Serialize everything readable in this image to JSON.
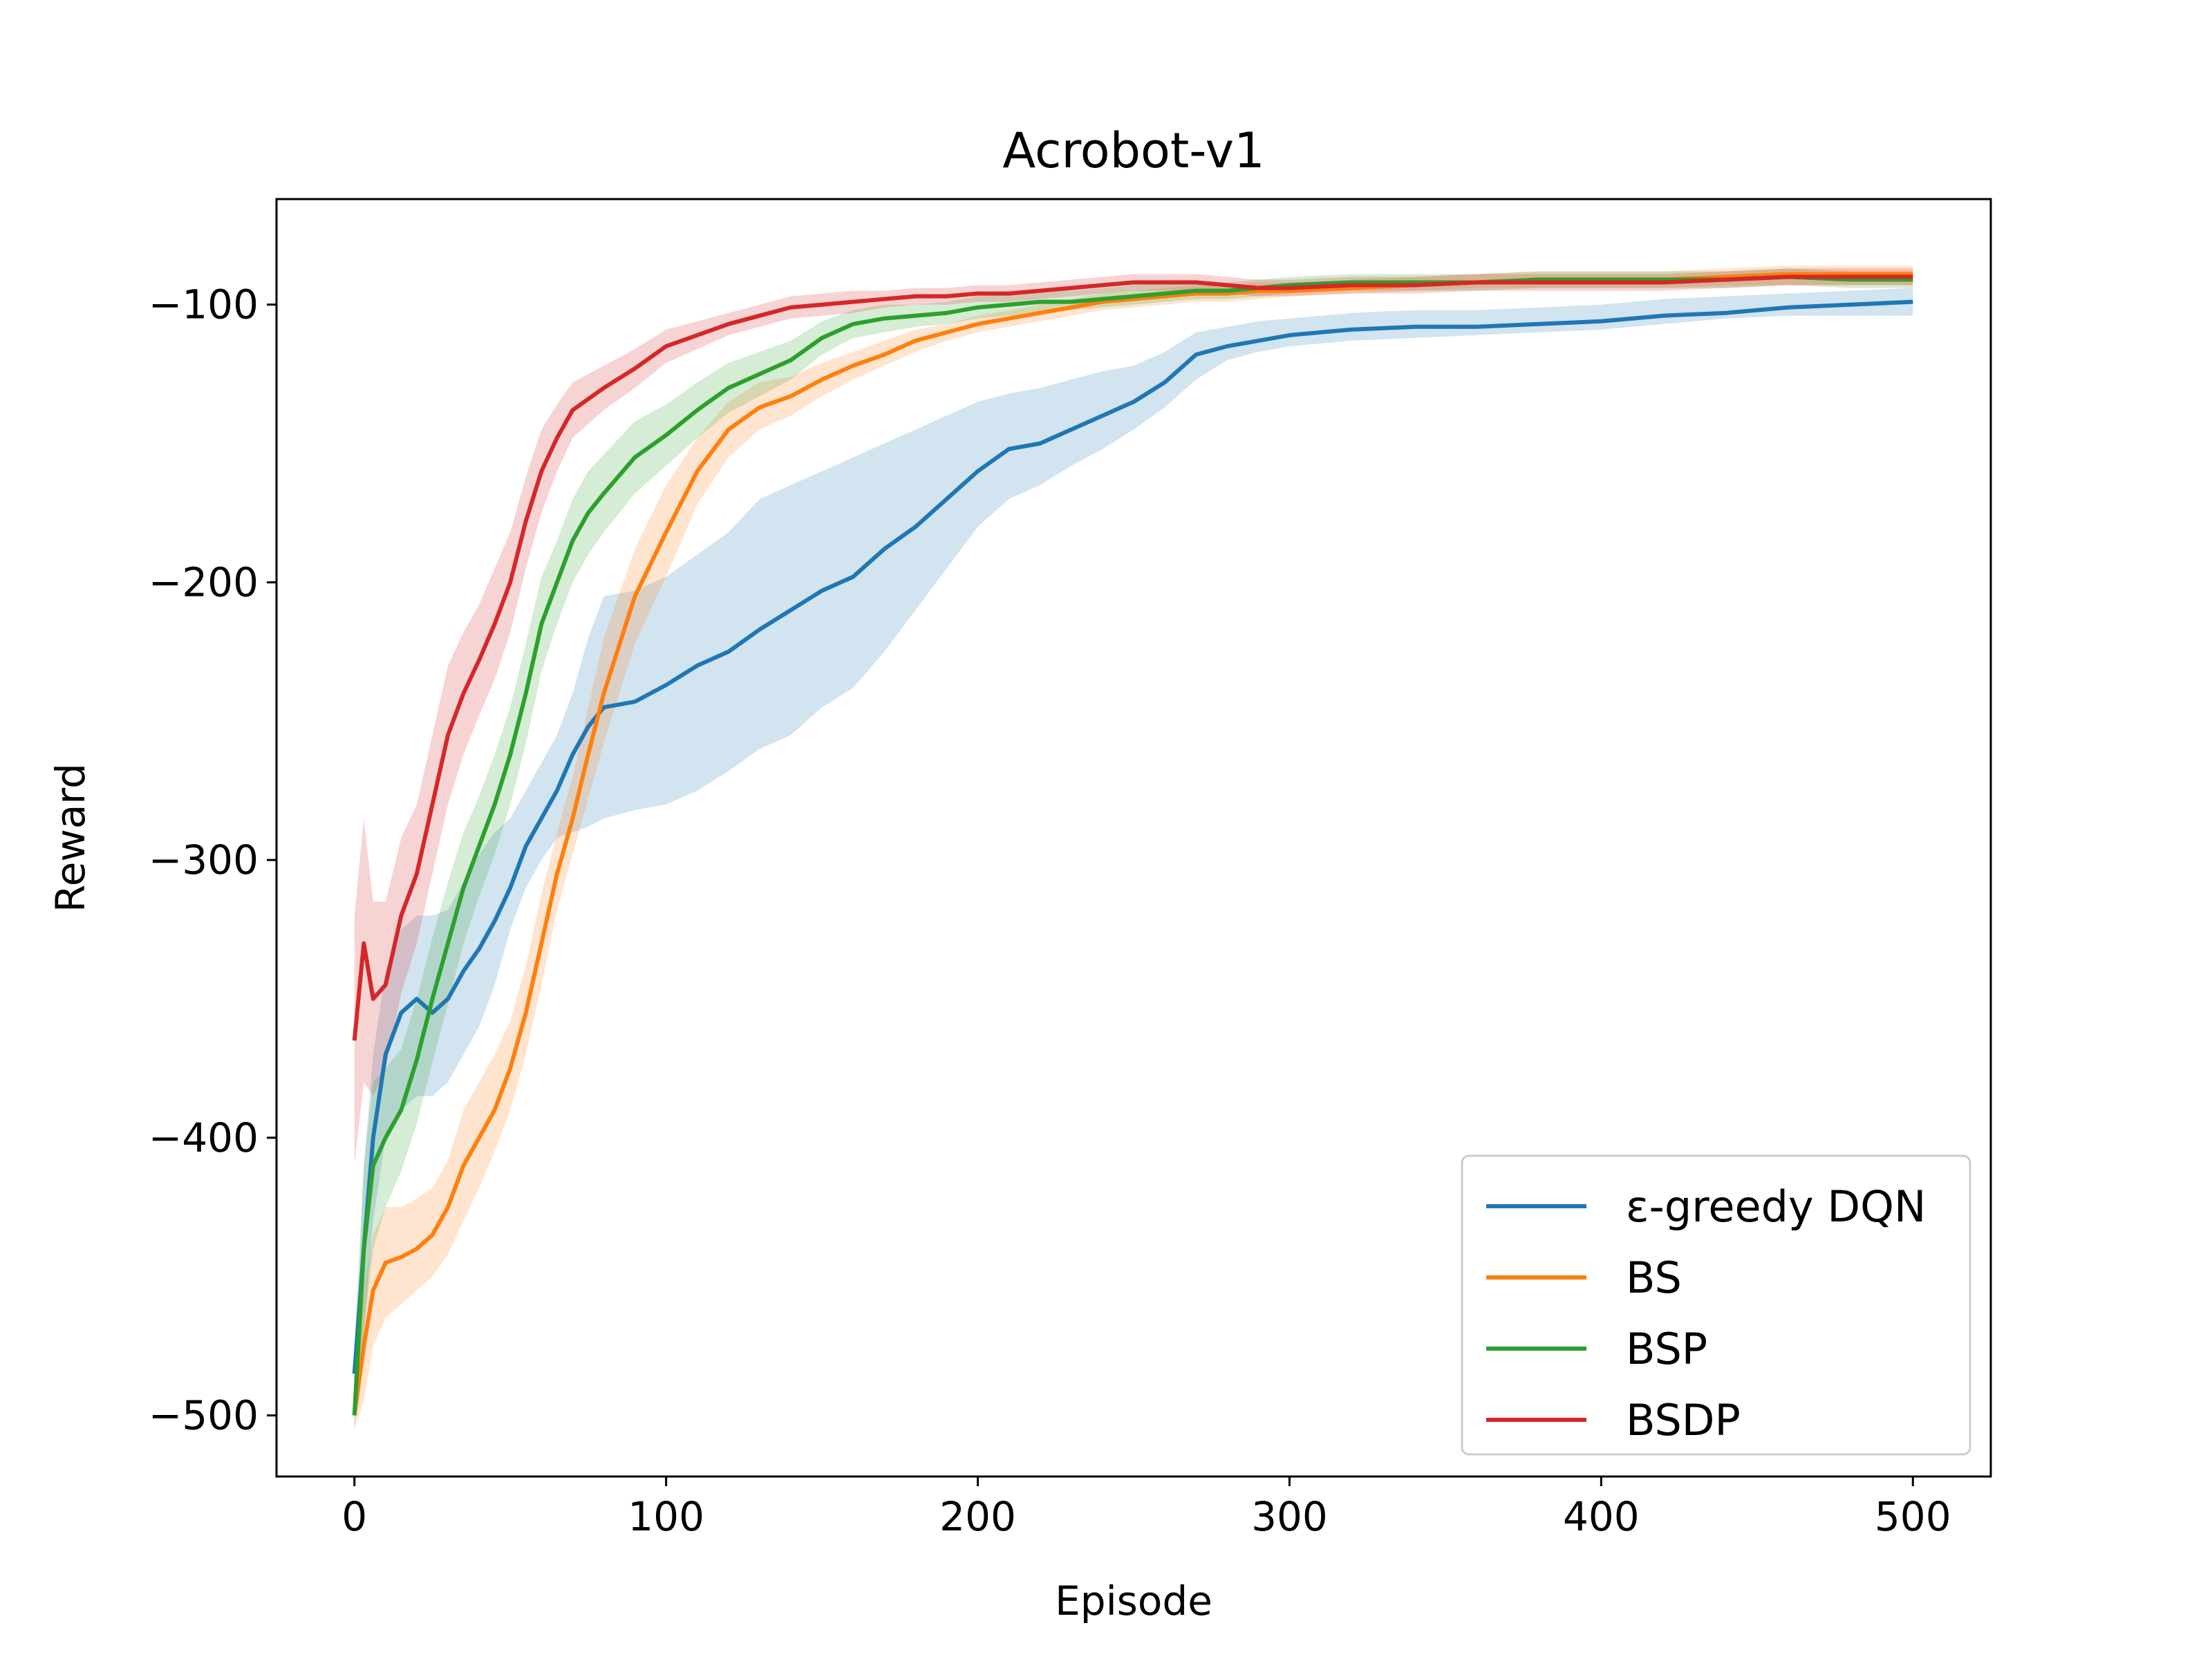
{
  "chart_data": {
    "type": "line",
    "title": "Acrobot-v1",
    "xlabel": "Episode",
    "ylabel": "Reward",
    "xlim": [
      -25,
      525
    ],
    "ylim": [
      -522,
      -62
    ],
    "xticks": [
      0,
      100,
      200,
      300,
      400,
      500
    ],
    "yticks": [
      -500,
      -400,
      -300,
      -200,
      -100
    ],
    "xtick_labels": [
      "0",
      "100",
      "200",
      "300",
      "400",
      "500"
    ],
    "ytick_labels": [
      "−500",
      "−400",
      "−300",
      "−200",
      "−100"
    ],
    "grid": false,
    "legend_position": "lower-right",
    "series": [
      {
        "name": "ε-greedy DQN",
        "color": "#1f77b4",
        "x": [
          0,
          3,
          6,
          10,
          15,
          20,
          25,
          30,
          35,
          40,
          45,
          50,
          55,
          60,
          65,
          70,
          75,
          80,
          90,
          100,
          110,
          120,
          130,
          140,
          150,
          160,
          170,
          180,
          190,
          200,
          210,
          220,
          230,
          240,
          250,
          260,
          270,
          280,
          290,
          300,
          310,
          320,
          340,
          360,
          380,
          400,
          420,
          440,
          460,
          480,
          500
        ],
        "y": [
          -485,
          -440,
          -400,
          -370,
          -355,
          -350,
          -355,
          -350,
          -340,
          -332,
          -322,
          -310,
          -295,
          -285,
          -275,
          -262,
          -252,
          -245,
          -243,
          -237,
          -230,
          -225,
          -217,
          -210,
          -203,
          -198,
          -188,
          -180,
          -170,
          -160,
          -152,
          -150,
          -145,
          -140,
          -135,
          -128,
          -118,
          -115,
          -113,
          -111,
          -110,
          -109,
          -108,
          -108,
          -107,
          -106,
          -104,
          -103,
          -101,
          -100,
          -99
        ],
        "lower": [
          -495,
          -470,
          -430,
          -400,
          -390,
          -385,
          -385,
          -380,
          -370,
          -360,
          -345,
          -325,
          -310,
          -300,
          -292,
          -290,
          -288,
          -285,
          -282,
          -280,
          -275,
          -268,
          -260,
          -255,
          -245,
          -238,
          -225,
          -210,
          -195,
          -180,
          -170,
          -165,
          -158,
          -152,
          -145,
          -137,
          -127,
          -120,
          -117,
          -115,
          -114,
          -113,
          -112,
          -111,
          -110,
          -109,
          -107,
          -105,
          -104,
          -104,
          -104
        ],
        "upper": [
          -475,
          -410,
          -370,
          -340,
          -325,
          -320,
          -320,
          -318,
          -308,
          -298,
          -290,
          -285,
          -275,
          -265,
          -255,
          -240,
          -220,
          -205,
          -203,
          -198,
          -190,
          -182,
          -170,
          -165,
          -160,
          -155,
          -150,
          -145,
          -140,
          -135,
          -132,
          -130,
          -127,
          -124,
          -122,
          -117,
          -110,
          -108,
          -106,
          -105,
          -104,
          -103,
          -102,
          -102,
          -101,
          -100,
          -98,
          -97,
          -96,
          -95,
          -94
        ]
      },
      {
        "name": "BS",
        "color": "#ff7f0e",
        "x": [
          0,
          3,
          6,
          10,
          15,
          20,
          25,
          30,
          35,
          40,
          45,
          50,
          55,
          60,
          65,
          70,
          75,
          80,
          90,
          100,
          110,
          120,
          130,
          140,
          150,
          160,
          170,
          180,
          190,
          200,
          210,
          220,
          230,
          240,
          250,
          260,
          270,
          280,
          290,
          300,
          320,
          340,
          360,
          380,
          400,
          420,
          440,
          460,
          480,
          500
        ],
        "y": [
          -500,
          -475,
          -455,
          -445,
          -443,
          -440,
          -435,
          -425,
          -410,
          -400,
          -390,
          -375,
          -355,
          -330,
          -305,
          -285,
          -262,
          -240,
          -205,
          -182,
          -160,
          -145,
          -137,
          -133,
          -127,
          -122,
          -118,
          -113,
          -110,
          -107,
          -105,
          -103,
          -101,
          -99,
          -98,
          -97,
          -96,
          -96,
          -95,
          -95,
          -94,
          -93,
          -92,
          -91,
          -91,
          -91,
          -90,
          -89,
          -89,
          -89
        ],
        "lower": [
          -505,
          -495,
          -475,
          -465,
          -460,
          -455,
          -450,
          -442,
          -430,
          -418,
          -405,
          -390,
          -370,
          -345,
          -318,
          -298,
          -278,
          -258,
          -222,
          -198,
          -172,
          -155,
          -145,
          -140,
          -133,
          -127,
          -122,
          -117,
          -113,
          -110,
          -108,
          -106,
          -104,
          -102,
          -101,
          -100,
          -99,
          -99,
          -98,
          -97,
          -96,
          -95,
          -94,
          -94,
          -94,
          -94,
          -93,
          -93,
          -93,
          -93
        ],
        "upper": [
          -495,
          -455,
          -435,
          -425,
          -425,
          -422,
          -418,
          -408,
          -390,
          -380,
          -370,
          -358,
          -338,
          -312,
          -290,
          -270,
          -245,
          -220,
          -188,
          -165,
          -148,
          -135,
          -128,
          -126,
          -121,
          -117,
          -113,
          -109,
          -107,
          -104,
          -102,
          -100,
          -98,
          -96,
          -95,
          -94,
          -93,
          -93,
          -92,
          -92,
          -91,
          -90,
          -89,
          -88,
          -88,
          -88,
          -87,
          -86,
          -86,
          -86
        ]
      },
      {
        "name": "BSP",
        "color": "#2ca02c",
        "x": [
          0,
          3,
          6,
          10,
          15,
          20,
          25,
          30,
          35,
          40,
          45,
          50,
          55,
          60,
          65,
          70,
          75,
          80,
          90,
          100,
          110,
          120,
          130,
          140,
          150,
          160,
          170,
          180,
          190,
          200,
          210,
          220,
          230,
          240,
          250,
          260,
          270,
          280,
          290,
          300,
          320,
          340,
          360,
          380,
          400,
          420,
          440,
          460,
          480,
          500
        ],
        "y": [
          -500,
          -440,
          -410,
          -400,
          -390,
          -372,
          -350,
          -330,
          -310,
          -295,
          -280,
          -262,
          -240,
          -215,
          -200,
          -185,
          -175,
          -168,
          -155,
          -147,
          -138,
          -130,
          -125,
          -120,
          -112,
          -107,
          -105,
          -104,
          -103,
          -101,
          -100,
          -99,
          -99,
          -98,
          -97,
          -96,
          -95,
          -95,
          -94,
          -93,
          -92,
          -92,
          -92,
          -91,
          -91,
          -91,
          -91,
          -90,
          -91,
          -91
        ],
        "lower": [
          -505,
          -470,
          -440,
          -425,
          -412,
          -395,
          -373,
          -352,
          -330,
          -313,
          -298,
          -280,
          -258,
          -232,
          -215,
          -200,
          -190,
          -182,
          -168,
          -158,
          -148,
          -139,
          -133,
          -127,
          -118,
          -112,
          -110,
          -108,
          -107,
          -105,
          -104,
          -103,
          -102,
          -101,
          -100,
          -99,
          -98,
          -98,
          -97,
          -96,
          -95,
          -95,
          -95,
          -94,
          -94,
          -94,
          -94,
          -93,
          -94,
          -94
        ],
        "upper": [
          -495,
          -410,
          -380,
          -375,
          -368,
          -350,
          -328,
          -308,
          -290,
          -277,
          -262,
          -245,
          -222,
          -198,
          -185,
          -170,
          -160,
          -154,
          -142,
          -136,
          -128,
          -121,
          -117,
          -113,
          -106,
          -102,
          -100,
          -100,
          -99,
          -97,
          -96,
          -95,
          -95,
          -94,
          -93,
          -92,
          -92,
          -92,
          -91,
          -90,
          -89,
          -89,
          -89,
          -88,
          -88,
          -88,
          -88,
          -87,
          -88,
          -88
        ]
      },
      {
        "name": "BSDP",
        "color": "#d62728",
        "x": [
          0,
          3,
          6,
          10,
          15,
          20,
          25,
          30,
          35,
          40,
          45,
          50,
          55,
          60,
          65,
          70,
          75,
          80,
          90,
          100,
          110,
          120,
          130,
          140,
          150,
          160,
          170,
          180,
          190,
          200,
          210,
          220,
          230,
          240,
          250,
          260,
          270,
          280,
          290,
          300,
          320,
          340,
          360,
          380,
          400,
          420,
          440,
          460,
          480,
          500
        ],
        "y": [
          -365,
          -330,
          -350,
          -345,
          -320,
          -305,
          -280,
          -255,
          -240,
          -228,
          -215,
          -200,
          -178,
          -160,
          -148,
          -138,
          -134,
          -130,
          -123,
          -115,
          -111,
          -107,
          -104,
          -101,
          -100,
          -99,
          -98,
          -97,
          -97,
          -96,
          -96,
          -95,
          -94,
          -93,
          -92,
          -92,
          -92,
          -93,
          -94,
          -94,
          -93,
          -93,
          -92,
          -92,
          -92,
          -92,
          -91,
          -90,
          -90,
          -90
        ],
        "lower": [
          -410,
          -380,
          -385,
          -375,
          -348,
          -330,
          -305,
          -280,
          -262,
          -248,
          -235,
          -218,
          -195,
          -175,
          -160,
          -148,
          -143,
          -138,
          -130,
          -121,
          -116,
          -111,
          -108,
          -105,
          -104,
          -103,
          -101,
          -100,
          -100,
          -99,
          -99,
          -98,
          -97,
          -96,
          -95,
          -95,
          -95,
          -96,
          -97,
          -97,
          -96,
          -96,
          -95,
          -95,
          -95,
          -95,
          -94,
          -93,
          -93,
          -93
        ],
        "upper": [
          -320,
          -285,
          -315,
          -315,
          -292,
          -280,
          -255,
          -230,
          -218,
          -208,
          -195,
          -182,
          -162,
          -145,
          -136,
          -128,
          -125,
          -122,
          -116,
          -109,
          -106,
          -103,
          -100,
          -97,
          -96,
          -95,
          -95,
          -94,
          -94,
          -93,
          -93,
          -92,
          -91,
          -90,
          -89,
          -89,
          -89,
          -90,
          -91,
          -91,
          -90,
          -90,
          -89,
          -89,
          -89,
          -89,
          -88,
          -87,
          -87,
          -87
        ]
      }
    ]
  }
}
